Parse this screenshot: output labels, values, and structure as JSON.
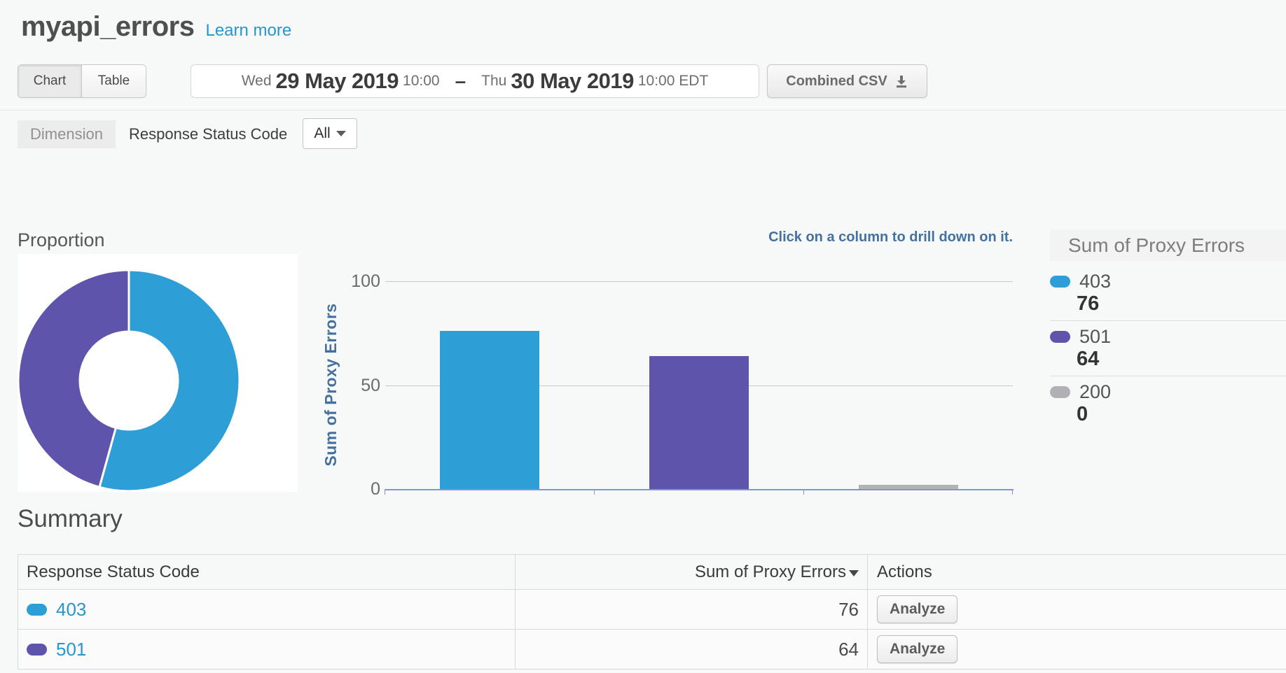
{
  "header": {
    "title": "myapi_errors",
    "learn_more_label": "Learn more",
    "tabs": [
      {
        "label": "Chart",
        "active": true
      },
      {
        "label": "Table",
        "active": false
      }
    ],
    "date_range": {
      "start_day": "Wed",
      "start_date": "29 May 2019",
      "start_time": "10:00",
      "separator": "–",
      "end_day": "Thu",
      "end_date": "30 May 2019",
      "end_time": "10:00",
      "timezone": "EDT"
    },
    "combined_csv_label": "Combined CSV"
  },
  "dimension_bar": {
    "dimension_label": "Dimension",
    "dimension_name": "Response Status Code",
    "filter_value": "All"
  },
  "colors": {
    "blue_403": "#2d9ed6",
    "purple_501": "#5f54ab",
    "grey_200": "#b3b2b5",
    "link_blue": "#2597cf",
    "steel_blue_text": "#44719e",
    "axis_line": "#8b93cd"
  },
  "charts": {
    "proportion_title": "Proportion",
    "drill_hint": "Click on a column to drill down on it.",
    "y_axis_label": "Sum of Proxy Errors",
    "legend": {
      "title": "Sum of Proxy Errors",
      "items": [
        {
          "label": "403",
          "value": "76",
          "color": "#2d9ed6"
        },
        {
          "label": "501",
          "value": "64",
          "color": "#5f54ab"
        },
        {
          "label": "200",
          "value": "0",
          "color": "#b1b0b4"
        }
      ]
    }
  },
  "chart_data": [
    {
      "type": "pie",
      "subtype": "donut",
      "title": "Proportion",
      "categories": [
        "403",
        "501",
        "200"
      ],
      "values": [
        76,
        64,
        0
      ],
      "colors": [
        "#2d9ed6",
        "#5f54ab",
        "#b1b0b4"
      ],
      "legend_position": "right"
    },
    {
      "type": "bar",
      "title": "Sum of Proxy Errors",
      "categories": [
        "403",
        "501",
        "200"
      ],
      "values": [
        76,
        64,
        0
      ],
      "colors": [
        "#2d9ed6",
        "#5f54ab",
        "#b3b2b5"
      ],
      "ylabel": "Sum of Proxy Errors",
      "ylim": [
        0,
        100
      ],
      "yticks": [
        0,
        50,
        100
      ],
      "grid": true,
      "annotation": "Click on a column to drill down on it."
    }
  ],
  "summary": {
    "title": "Summary",
    "columns": [
      "Response Status Code",
      "Sum of Proxy Errors",
      "Actions"
    ],
    "sorted_column": "Sum of Proxy Errors",
    "sort_direction": "desc",
    "rows": [
      {
        "code": "403",
        "color": "#2d9ed6",
        "value": "76",
        "action_label": "Analyze"
      },
      {
        "code": "501",
        "color": "#5f54ab",
        "value": "64",
        "action_label": "Analyze"
      }
    ]
  }
}
